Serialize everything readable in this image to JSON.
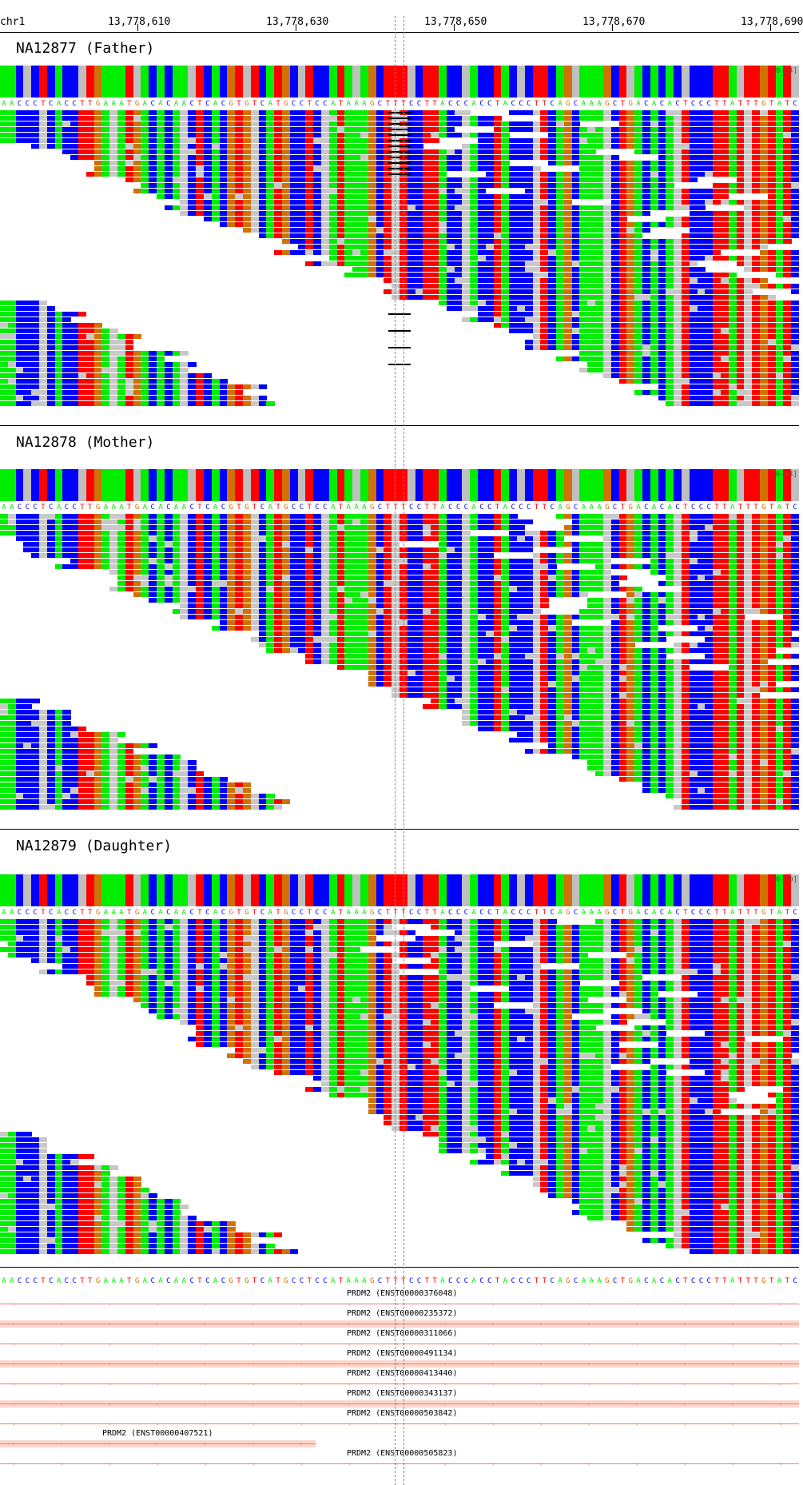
{
  "ruler": {
    "chrom": "chr1",
    "positions": [
      "13,778,610",
      "13,778,630",
      "13,778,650",
      "13,778,670",
      "13,778,690"
    ]
  },
  "reference": "AACCCTCACCTTGAAATGACACAACTCACGTGTCATGCCTCCATAAAGCTTTCCTTACCCACCTACCCTTCAGCAAAGCTGACACACTCCCTTATTTGTATC",
  "colors": {
    "A": "#00ee00",
    "C": "#0000ff",
    "G": "#d17105",
    "T": "#ff0000",
    "match": "#c8c8c8",
    "coverage_grey": "#bfbfbf",
    "gene": "#f08070"
  },
  "tracks": [
    {
      "id": "father",
      "title": "NA12877 (Father)",
      "scale": "[0-54]"
    },
    {
      "id": "mother",
      "title": "NA12878 (Mother)",
      "scale": "[0-54]"
    },
    {
      "id": "daughter",
      "title": "NA12879 (Daughter)",
      "scale": "[0-60]"
    }
  ],
  "genes": [
    {
      "label": "PRDM2 (ENST00000376048)",
      "extent": "full"
    },
    {
      "label": "PRDM2 (ENST00000235372)",
      "extent": "full"
    },
    {
      "label": "PRDM2 (ENST00000311066)",
      "extent": "full"
    },
    {
      "label": "PRDM2 (ENST00000491134)",
      "extent": "full"
    },
    {
      "label": "PRDM2 (ENST00000413440)",
      "extent": "full"
    },
    {
      "label": "PRDM2 (ENST00000343137)",
      "extent": "full"
    },
    {
      "label": "PRDM2 (ENST00000503842)",
      "extent": "full"
    },
    {
      "label": "PRDM2 (ENST00000407521)",
      "extent": "partial"
    },
    {
      "label": "PRDM2 (ENST00000505823)",
      "extent": "full"
    }
  ]
}
